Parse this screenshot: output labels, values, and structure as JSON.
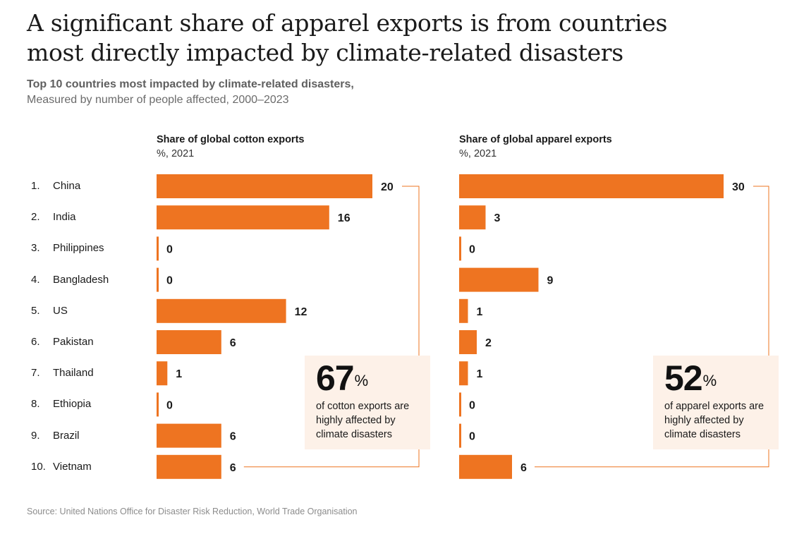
{
  "title_line1": "A significant share of apparel exports is from countries",
  "title_line2": "most directly impacted by climate-related disasters",
  "subtitle_line1": "Top 10 countries most impacted by climate-related disasters,",
  "subtitle_line2": "Measured by number of people affected, 2000–2023",
  "countries": [
    {
      "rank": "1.",
      "name": "China"
    },
    {
      "rank": "2.",
      "name": "India"
    },
    {
      "rank": "3.",
      "name": "Philippines"
    },
    {
      "rank": "4.",
      "name": "Bangladesh"
    },
    {
      "rank": "5.",
      "name": "US"
    },
    {
      "rank": "6.",
      "name": "Pakistan"
    },
    {
      "rank": "7.",
      "name": "Thailand"
    },
    {
      "rank": "8.",
      "name": "Ethiopia"
    },
    {
      "rank": "9.",
      "name": "Brazil"
    },
    {
      "rank": "10.",
      "name": "Vietnam"
    }
  ],
  "cotton_panel": {
    "header": "Share of global cotton exports",
    "unit": "%, 2021",
    "callout_value": "67",
    "callout_unit": "%",
    "callout_text": "of cotton exports are highly affected by climate disasters"
  },
  "apparel_panel": {
    "header": "Share of global apparel exports",
    "unit": "%, 2021",
    "callout_value": "52",
    "callout_unit": "%",
    "callout_text": "of apparel exports are highly affected by climate disasters"
  },
  "source": "Source: United Nations Office for Disaster Risk Reduction, World Trade Organisation",
  "colors": {
    "bar": "#ee7421",
    "callout_bg": "#fdf1e8",
    "bracket": "#ee7421"
  },
  "chart_data": [
    {
      "type": "bar",
      "orientation": "horizontal",
      "title": "Share of global cotton exports",
      "ylabel": "%, 2021",
      "categories": [
        "China",
        "India",
        "Philippines",
        "Bangladesh",
        "US",
        "Pakistan",
        "Thailand",
        "Ethiopia",
        "Brazil",
        "Vietnam"
      ],
      "values": [
        20,
        16,
        0,
        0,
        12,
        6,
        1,
        0,
        6,
        6
      ],
      "xlim": [
        0,
        20
      ]
    },
    {
      "type": "bar",
      "orientation": "horizontal",
      "title": "Share of global apparel exports",
      "ylabel": "%, 2021",
      "categories": [
        "China",
        "India",
        "Philippines",
        "Bangladesh",
        "US",
        "Pakistan",
        "Thailand",
        "Ethiopia",
        "Brazil",
        "Vietnam"
      ],
      "values": [
        30,
        3,
        0,
        9,
        1,
        2,
        1,
        0,
        0,
        6
      ],
      "xlim": [
        0,
        30
      ]
    }
  ]
}
